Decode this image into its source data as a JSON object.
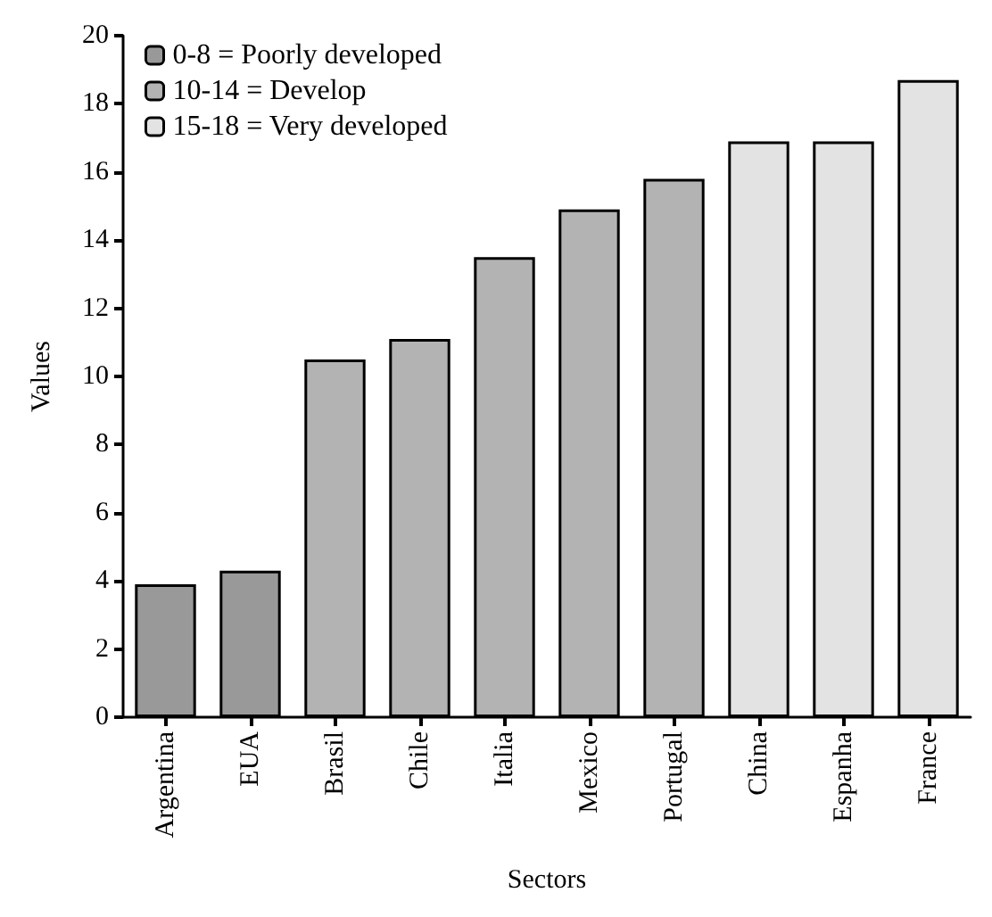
{
  "chart_data": {
    "type": "bar",
    "xlabel": "Sectors",
    "ylabel": "Values",
    "categories": [
      "Argentina",
      "EUA",
      "Brasil",
      "Chile",
      "Italia",
      "Mexico",
      "Portugal",
      "China",
      "Espanha",
      "France"
    ],
    "series": [
      {
        "name": "0-8 = Poorly developed",
        "color": "#999999",
        "values": [
          3.9,
          4.3,
          null,
          null,
          null,
          null,
          null,
          null,
          null,
          null
        ]
      },
      {
        "name": "10-14 = Develop",
        "color": "#b3b3b3",
        "values": [
          null,
          null,
          10.5,
          11.1,
          13.5,
          14.9,
          15.8,
          null,
          null,
          null
        ]
      },
      {
        "name": "15-18 = Very developed",
        "color": "#e3e3e3",
        "values": [
          null,
          null,
          null,
          null,
          null,
          null,
          null,
          16.9,
          16.9,
          18.7
        ]
      }
    ],
    "stacked": true,
    "ylim": [
      0,
      20
    ],
    "yticks": [
      0,
      2,
      4,
      6,
      8,
      10,
      12,
      14,
      16,
      18,
      20
    ],
    "grid": false,
    "legend": "top left"
  }
}
